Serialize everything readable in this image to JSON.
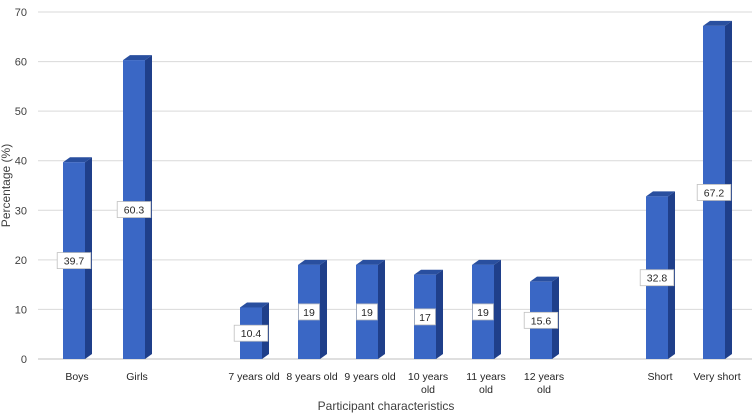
{
  "chart_data": {
    "type": "bar",
    "title": "",
    "xlabel": "Participant characteristics",
    "ylabel": "Percentage (%)",
    "ylim": [
      0,
      70
    ],
    "yticks": [
      0,
      10,
      20,
      30,
      40,
      50,
      60,
      70
    ],
    "grid": true,
    "legend": "none",
    "bar_color": "#3a67c5",
    "categories": [
      [
        "Boys"
      ],
      [
        "Girls"
      ],
      [
        "7 years old"
      ],
      [
        "8 years old"
      ],
      [
        "9 years old"
      ],
      [
        "10 years",
        "old"
      ],
      [
        "11 years",
        "old"
      ],
      [
        "12 years",
        "old"
      ],
      [
        "Short"
      ],
      [
        "Very short"
      ]
    ],
    "values": [
      39.7,
      60.3,
      10.4,
      19,
      19,
      17,
      19,
      15.6,
      32.8,
      67.2
    ],
    "data_labels": [
      "39.7",
      "60.3",
      "10.4",
      "19",
      "19",
      "17",
      "19",
      "15.6",
      "32.8",
      "67.2"
    ]
  }
}
